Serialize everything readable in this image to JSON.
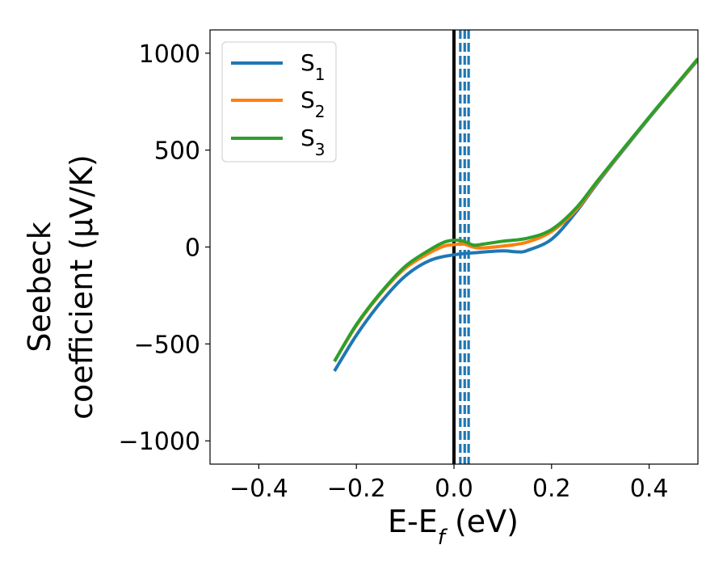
{
  "chart_data": {
    "type": "line",
    "xlabel": "E-E",
    "xlabel_sub": "f",
    "xlabel_unit": " (eV)",
    "ylabel_line1": "Seebeck",
    "ylabel_line2": "coefficient  (μV/K)",
    "xlim": [
      -0.5,
      0.5
    ],
    "ylim": [
      -1120,
      1120
    ],
    "xticks": [
      -0.4,
      -0.2,
      0.0,
      0.2,
      0.4
    ],
    "xtick_labels": [
      "−0.4",
      "−0.2",
      "0.0",
      "0.2",
      "0.4"
    ],
    "yticks": [
      -1000,
      -500,
      0,
      500,
      1000
    ],
    "ytick_labels": [
      "−1000",
      "−500",
      "0",
      "500",
      "1000"
    ],
    "legend_position": "top-left",
    "vertical_lines": [
      {
        "x": 0.0,
        "style": "solid",
        "color": "#000000"
      },
      {
        "x": 0.013,
        "style": "dashed",
        "color": "#1f77b4"
      },
      {
        "x": 0.022,
        "style": "dashed",
        "color": "#1f77b4"
      },
      {
        "x": 0.03,
        "style": "dashed",
        "color": "#1f77b4"
      }
    ],
    "series": [
      {
        "name": "S",
        "sub": "1",
        "color": "#1f77b4",
        "points": [
          [
            -0.245,
            -640
          ],
          [
            -0.2,
            -455
          ],
          [
            -0.15,
            -285
          ],
          [
            -0.1,
            -150
          ],
          [
            -0.05,
            -70
          ],
          [
            0.0,
            -40
          ],
          [
            0.05,
            -28
          ],
          [
            0.1,
            -20
          ],
          [
            0.13,
            -25
          ],
          [
            0.15,
            -18
          ],
          [
            0.2,
            40
          ],
          [
            0.25,
            180
          ],
          [
            0.3,
            350
          ],
          [
            0.4,
            665
          ],
          [
            0.5,
            965
          ]
        ]
      },
      {
        "name": "S",
        "sub": "2",
        "color": "#ff7f0e",
        "points": [
          [
            -0.245,
            -590
          ],
          [
            -0.2,
            -405
          ],
          [
            -0.15,
            -240
          ],
          [
            -0.1,
            -110
          ],
          [
            -0.05,
            -30
          ],
          [
            -0.02,
            5
          ],
          [
            0.0,
            12
          ],
          [
            0.02,
            15
          ],
          [
            0.05,
            -5
          ],
          [
            0.1,
            5
          ],
          [
            0.15,
            25
          ],
          [
            0.2,
            80
          ],
          [
            0.25,
            190
          ],
          [
            0.3,
            355
          ],
          [
            0.4,
            668
          ],
          [
            0.5,
            968
          ]
        ]
      },
      {
        "name": "S",
        "sub": "3",
        "color": "#2ca02c",
        "points": [
          [
            -0.245,
            -590
          ],
          [
            -0.2,
            -400
          ],
          [
            -0.15,
            -235
          ],
          [
            -0.1,
            -100
          ],
          [
            -0.05,
            -15
          ],
          [
            -0.02,
            25
          ],
          [
            0.0,
            35
          ],
          [
            0.02,
            30
          ],
          [
            0.04,
            10
          ],
          [
            0.06,
            15
          ],
          [
            0.1,
            30
          ],
          [
            0.15,
            45
          ],
          [
            0.2,
            90
          ],
          [
            0.25,
            200
          ],
          [
            0.3,
            360
          ],
          [
            0.4,
            670
          ],
          [
            0.5,
            972
          ]
        ]
      }
    ]
  }
}
